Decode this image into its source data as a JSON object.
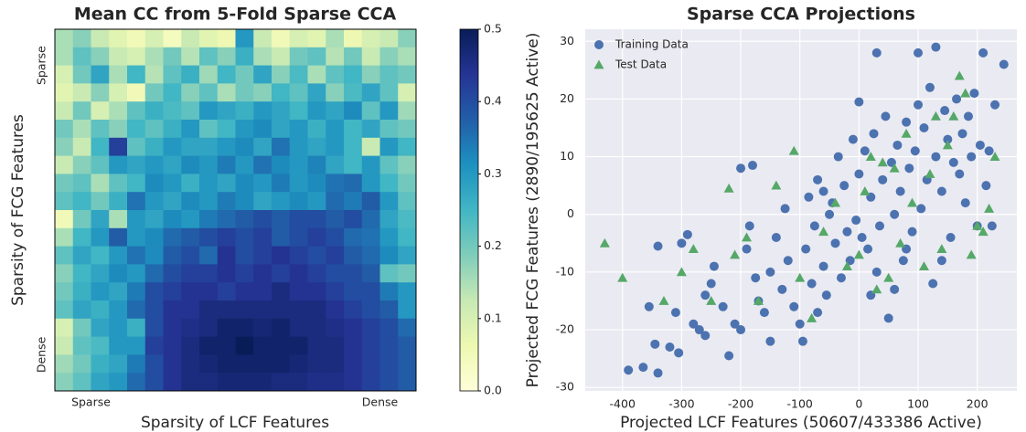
{
  "chart_data": [
    {
      "type": "heatmap",
      "title": "Mean CC from 5-Fold Sparse CCA",
      "x_label": "Sparsity of LCF Features",
      "y_label": "Sparsity of FCG Features",
      "xlim": [
        0,
        20
      ],
      "ylim": [
        20,
        0
      ],
      "xticks": [
        {
          "value": 2,
          "label": "Sparse"
        },
        {
          "value": 18,
          "label": "Dense"
        }
      ],
      "yticks": [
        {
          "value": 2,
          "label": "Sparse"
        },
        {
          "value": 18,
          "label": "Dense"
        }
      ],
      "colormap": [
        "#ffffd9",
        "#edf8b1",
        "#c7e9b4",
        "#7fcdbb",
        "#41b6c4",
        "#1d91c0",
        "#225ea8",
        "#253494",
        "#081d58"
      ],
      "colorbar": {
        "lim": [
          0,
          0.5
        ],
        "ticks": [
          {
            "value": 0,
            "label": "0.0"
          },
          0.1,
          0.2,
          0.3,
          0.4,
          0.5
        ]
      },
      "values": [
        [
          0.15,
          0.18,
          0.12,
          0.08,
          0.05,
          0.1,
          0.04,
          0.12,
          0.08,
          0.06,
          0.3,
          0.12,
          0.05,
          0.1,
          0.08,
          0.15,
          0.06,
          0.1,
          0.12,
          0.18
        ],
        [
          0.15,
          0.22,
          0.18,
          0.12,
          0.1,
          0.15,
          0.2,
          0.14,
          0.22,
          0.18,
          0.26,
          0.15,
          0.12,
          0.2,
          0.22,
          0.14,
          0.2,
          0.12,
          0.18,
          0.15
        ],
        [
          0.1,
          0.2,
          0.28,
          0.15,
          0.25,
          0.14,
          0.22,
          0.26,
          0.16,
          0.25,
          0.2,
          0.28,
          0.18,
          0.24,
          0.15,
          0.22,
          0.25,
          0.18,
          0.22,
          0.2
        ],
        [
          0.08,
          0.12,
          0.18,
          0.1,
          0.05,
          0.2,
          0.25,
          0.18,
          0.22,
          0.15,
          0.2,
          0.18,
          0.25,
          0.22,
          0.28,
          0.18,
          0.24,
          0.28,
          0.22,
          0.1
        ],
        [
          0.12,
          0.2,
          0.1,
          0.15,
          0.22,
          0.26,
          0.24,
          0.22,
          0.3,
          0.28,
          0.26,
          0.3,
          0.28,
          0.25,
          0.3,
          0.28,
          0.32,
          0.22,
          0.3,
          0.16
        ],
        [
          0.2,
          0.15,
          0.22,
          0.18,
          0.25,
          0.22,
          0.26,
          0.3,
          0.22,
          0.25,
          0.3,
          0.32,
          0.28,
          0.3,
          0.26,
          0.3,
          0.25,
          0.28,
          0.22,
          0.2
        ],
        [
          0.18,
          0.12,
          0.25,
          0.42,
          0.22,
          0.26,
          0.3,
          0.28,
          0.28,
          0.3,
          0.32,
          0.28,
          0.35,
          0.3,
          0.28,
          0.3,
          0.25,
          0.12,
          0.3,
          0.25
        ],
        [
          0.12,
          0.18,
          0.22,
          0.3,
          0.28,
          0.3,
          0.28,
          0.32,
          0.3,
          0.34,
          0.3,
          0.35,
          0.32,
          0.3,
          0.33,
          0.28,
          0.25,
          0.3,
          0.22,
          0.18
        ],
        [
          0.2,
          0.22,
          0.15,
          0.22,
          0.25,
          0.32,
          0.3,
          0.26,
          0.3,
          0.28,
          0.32,
          0.3,
          0.34,
          0.3,
          0.32,
          0.35,
          0.36,
          0.3,
          0.25,
          0.2
        ],
        [
          0.22,
          0.25,
          0.2,
          0.26,
          0.35,
          0.3,
          0.28,
          0.32,
          0.3,
          0.34,
          0.32,
          0.28,
          0.3,
          0.32,
          0.3,
          0.36,
          0.34,
          0.38,
          0.3,
          0.22
        ],
        [
          0.05,
          0.2,
          0.28,
          0.15,
          0.3,
          0.28,
          0.32,
          0.3,
          0.34,
          0.36,
          0.38,
          0.4,
          0.38,
          0.4,
          0.4,
          0.38,
          0.4,
          0.36,
          0.28,
          0.24
        ],
        [
          0.15,
          0.25,
          0.3,
          0.38,
          0.3,
          0.32,
          0.36,
          0.38,
          0.4,
          0.42,
          0.4,
          0.42,
          0.38,
          0.4,
          0.42,
          0.4,
          0.36,
          0.35,
          0.3,
          0.25
        ],
        [
          0.22,
          0.28,
          0.25,
          0.3,
          0.35,
          0.32,
          0.38,
          0.4,
          0.36,
          0.44,
          0.4,
          0.42,
          0.44,
          0.42,
          0.4,
          0.42,
          0.38,
          0.36,
          0.32,
          0.28
        ],
        [
          0.18,
          0.25,
          0.28,
          0.32,
          0.3,
          0.36,
          0.4,
          0.42,
          0.42,
          0.44,
          0.42,
          0.44,
          0.42,
          0.44,
          0.42,
          0.4,
          0.4,
          0.38,
          0.22,
          0.2
        ],
        [
          0.2,
          0.26,
          0.3,
          0.28,
          0.34,
          0.4,
          0.42,
          0.44,
          0.44,
          0.42,
          0.44,
          0.44,
          0.46,
          0.44,
          0.44,
          0.42,
          0.4,
          0.4,
          0.34,
          0.3
        ],
        [
          0.22,
          0.28,
          0.26,
          0.3,
          0.36,
          0.4,
          0.44,
          0.44,
          0.46,
          0.46,
          0.46,
          0.46,
          0.46,
          0.46,
          0.46,
          0.44,
          0.42,
          0.4,
          0.38,
          0.3
        ],
        [
          0.1,
          0.2,
          0.28,
          0.3,
          0.26,
          0.4,
          0.44,
          0.45,
          0.46,
          0.48,
          0.48,
          0.47,
          0.48,
          0.46,
          0.46,
          0.45,
          0.44,
          0.42,
          0.4,
          0.36
        ],
        [
          0.12,
          0.22,
          0.24,
          0.3,
          0.3,
          0.42,
          0.44,
          0.46,
          0.48,
          0.48,
          0.5,
          0.48,
          0.48,
          0.48,
          0.46,
          0.46,
          0.44,
          0.42,
          0.4,
          0.38
        ],
        [
          0.16,
          0.2,
          0.26,
          0.28,
          0.34,
          0.4,
          0.44,
          0.46,
          0.47,
          0.48,
          0.48,
          0.48,
          0.48,
          0.47,
          0.46,
          0.46,
          0.44,
          0.42,
          0.4,
          0.38
        ],
        [
          0.18,
          0.22,
          0.28,
          0.3,
          0.36,
          0.4,
          0.44,
          0.46,
          0.46,
          0.47,
          0.47,
          0.47,
          0.46,
          0.46,
          0.45,
          0.45,
          0.44,
          0.42,
          0.4,
          0.38
        ]
      ]
    },
    {
      "type": "scatter",
      "title": "Sparse CCA Projections",
      "x_label": "Projected LCF Features (50607/433386 Active)",
      "y_label": "Projected FCG Features (2890/195625 Active)",
      "xlim": [
        -463,
        267
      ],
      "ylim": [
        -30.6,
        32.1
      ],
      "xticks": [
        -400,
        -300,
        -200,
        -100,
        0,
        100,
        200
      ],
      "yticks": [
        -30,
        -20,
        -10,
        0,
        10,
        20,
        30
      ],
      "grid": true,
      "legend": "upper left",
      "background": "#eaeaf2",
      "series": [
        {
          "name": "Training Data",
          "color": "#4c72b0",
          "marker": "circle",
          "x": [
            -390,
            -365,
            -340,
            -345,
            -320,
            -305,
            -355,
            -340,
            -300,
            -290,
            -310,
            -280,
            -270,
            -260,
            -250,
            -245,
            -230,
            -220,
            -210,
            -200,
            -190,
            -185,
            -180,
            -175,
            -170,
            -160,
            -150,
            -140,
            -130,
            -125,
            -120,
            -110,
            -100,
            -95,
            -90,
            -85,
            -80,
            -75,
            -70,
            -60,
            -55,
            -50,
            -45,
            -40,
            -35,
            -30,
            -25,
            -20,
            -15,
            -10,
            -5,
            0,
            0,
            5,
            10,
            15,
            20,
            25,
            30,
            30,
            35,
            40,
            45,
            50,
            55,
            60,
            65,
            70,
            75,
            80,
            85,
            90,
            95,
            100,
            100,
            105,
            110,
            115,
            120,
            125,
            130,
            130,
            140,
            145,
            150,
            155,
            160,
            165,
            170,
            175,
            180,
            185,
            190,
            195,
            200,
            205,
            210,
            215,
            220,
            225,
            230,
            245,
            -70,
            20,
            60,
            -150,
            -260,
            -200,
            -60,
            80,
            140
          ],
          "values": [
            -27,
            -26.5,
            -27.5,
            -22.5,
            -23,
            -24,
            -16,
            -5.5,
            -5,
            -3.5,
            -17,
            -19,
            -20,
            -14,
            -12,
            -9,
            -16,
            -24.5,
            -19,
            -20,
            -6,
            -2,
            8.5,
            -11,
            -15,
            -17,
            -10,
            -4,
            -13,
            1,
            -8,
            -16,
            -19,
            -22,
            -6,
            3,
            -12,
            -2,
            6,
            -9,
            -14,
            0,
            2,
            -5,
            10,
            -11,
            5,
            -3,
            -8,
            13,
            -1,
            19.5,
            7,
            -4,
            11,
            -6,
            3,
            14,
            28,
            -10,
            -2,
            6,
            17,
            -18,
            9,
            0,
            12,
            4,
            -8,
            16,
            8,
            -3,
            11,
            19,
            28,
            1,
            15,
            6,
            22,
            -12,
            29,
            10,
            4,
            18,
            13,
            -4,
            9,
            20,
            7,
            14,
            2,
            17,
            10,
            21,
            -2,
            12,
            28,
            5,
            11,
            -2,
            19,
            26,
            -17,
            -14,
            -13,
            -22,
            -21,
            8,
            4,
            -6,
            -8
          ]
        },
        {
          "name": "Test Data",
          "color": "#55a868",
          "marker": "triangle",
          "x": [
            -430,
            -400,
            -300,
            -280,
            -250,
            -220,
            -210,
            -190,
            -140,
            -110,
            -100,
            -80,
            -60,
            -40,
            -20,
            0,
            10,
            30,
            40,
            50,
            60,
            70,
            90,
            110,
            120,
            140,
            150,
            160,
            170,
            180,
            190,
            200,
            210,
            220,
            230,
            -330,
            -170,
            80,
            130,
            20
          ],
          "values": [
            -5,
            -11,
            -10,
            -6,
            -15,
            4.5,
            -7,
            -4,
            5,
            11,
            -11,
            -18,
            -3,
            2,
            -9,
            -7,
            4,
            -13,
            9,
            -11,
            8,
            -5,
            2,
            -9,
            7,
            -6,
            12,
            17,
            24,
            21,
            -7,
            -2,
            -3,
            1,
            10,
            -15,
            -15,
            14,
            17,
            10
          ]
        }
      ]
    }
  ]
}
